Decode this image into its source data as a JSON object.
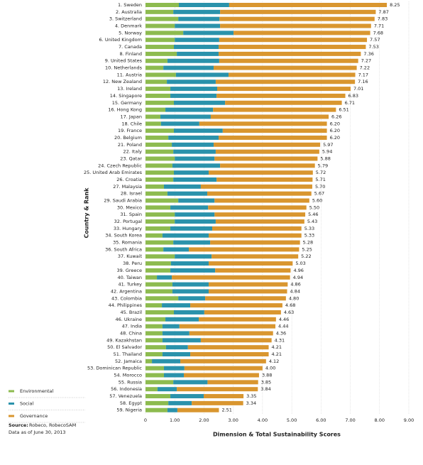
{
  "chart_data": {
    "type": "stacked-bar-horizontal",
    "x_label": "Dimension & Total Sustainability Scores",
    "y_label": "Country & Rank",
    "categories": [
      "1. Sweden",
      "2. Australia",
      "3. Switzerland",
      "4. Denmark",
      "5. Norway",
      "6. United Kingdom",
      "7. Canada",
      "8. Finland",
      "9. United States",
      "10. Netherlands",
      "11. Austria",
      "12. New Zealand",
      "13. Ireland",
      "14. Singapore",
      "15. Germany",
      "16. Hong Kong",
      "17. Japan",
      "18. Chile",
      "19. France",
      "20. Belgium",
      "21. Poland",
      "22. Italy",
      "23. Qatar",
      "24. Czech Republic",
      "25. United Arab Emirates",
      "26. Croatia",
      "27. Malaysia",
      "28. Israel",
      "29. Saudi Arabia",
      "30. Mexico",
      "31. Spain",
      "32. Portugal",
      "33. Hungary",
      "34. South Korea",
      "35. Romania",
      "36. South Africa",
      "37. Kuwait",
      "38. Peru",
      "39. Greece",
      "40. Taiwan",
      "41. Turkey",
      "42. Argentina",
      "43. Colombia",
      "44. Philippines",
      "45. Brazil",
      "46. Ukraine",
      "47. India",
      "48. China",
      "49. Kazakhstan",
      "50. El Salvador",
      "51. Thailand",
      "52. Jamaica",
      "53. Dominican Republic",
      "54. Morocco",
      "55. Russia",
      "56. Indonesia",
      "57. Venezuela",
      "58. Egypt",
      "59. Nigeria"
    ],
    "series": [
      {
        "name": "Environmental",
        "color": "#8dbb4f",
        "values": [
          1.14,
          0.95,
          1.12,
          1.0,
          1.29,
          1.0,
          0.97,
          1.07,
          0.75,
          0.61,
          1.04,
          0.73,
          0.85,
          0.85,
          0.97,
          0.68,
          0.51,
          0.53,
          0.97,
          0.78,
          0.9,
          0.95,
          1.0,
          0.92,
          0.97,
          0.95,
          0.63,
          0.75,
          1.12,
          0.85,
          1.0,
          1.0,
          0.85,
          0.58,
          0.95,
          0.61,
          1.0,
          0.87,
          0.85,
          0.39,
          0.92,
          0.92,
          1.12,
          0.56,
          0.97,
          0.68,
          0.58,
          0.58,
          0.58,
          0.7,
          0.58,
          0.22,
          0.63,
          0.63,
          0.95,
          0.41,
          0.85,
          0.78,
          0.75
        ]
      },
      {
        "name": "Social",
        "color": "#2a92ab",
        "values": [
          1.72,
          1.6,
          1.41,
          1.55,
          1.72,
          1.52,
          1.53,
          1.43,
          1.77,
          1.72,
          1.8,
          1.67,
          1.6,
          1.58,
          1.75,
          1.63,
          1.72,
          1.31,
          1.67,
          1.72,
          1.43,
          1.45,
          1.36,
          1.63,
          1.19,
          1.48,
          1.26,
          1.36,
          1.24,
          1.29,
          1.36,
          1.4,
          1.43,
          1.58,
          1.26,
          0.87,
          1.26,
          1.29,
          1.53,
          0.51,
          1.24,
          1.24,
          0.92,
          0.97,
          1.04,
          1.14,
          0.58,
          0.92,
          1.31,
          0.75,
          0.95,
          0.97,
          0.7,
          0.68,
          1.17,
          0.66,
          1.14,
          0.8,
          0.34
        ]
      },
      {
        "name": "Governance",
        "color": "#d9962f",
        "values": [
          5.39,
          5.32,
          5.3,
          5.16,
          4.67,
          5.05,
          5.03,
          4.86,
          4.75,
          4.89,
          4.33,
          4.76,
          4.56,
          4.4,
          3.99,
          4.2,
          4.03,
          4.36,
          3.56,
          3.7,
          3.64,
          3.54,
          3.52,
          3.24,
          3.56,
          3.28,
          3.81,
          3.56,
          3.24,
          3.36,
          3.1,
          3.03,
          3.05,
          3.17,
          3.07,
          3.77,
          2.96,
          2.87,
          2.58,
          4.04,
          2.7,
          2.68,
          2.76,
          3.15,
          2.62,
          2.64,
          3.28,
          2.86,
          2.42,
          2.76,
          2.68,
          2.93,
          2.67,
          2.57,
          1.73,
          2.77,
          1.36,
          1.76,
          1.42
        ]
      }
    ],
    "totals": {
      "values": [
        8.25,
        7.87,
        7.83,
        7.71,
        7.68,
        7.57,
        7.53,
        7.36,
        7.27,
        7.22,
        7.17,
        7.16,
        7.01,
        6.83,
        6.71,
        6.51,
        6.26,
        6.2,
        6.2,
        6.2,
        5.97,
        5.94,
        5.88,
        5.79,
        5.72,
        5.71,
        5.7,
        5.67,
        5.6,
        5.5,
        5.46,
        5.43,
        5.33,
        5.33,
        5.28,
        5.25,
        5.22,
        5.03,
        4.96,
        4.94,
        4.86,
        4.84,
        4.8,
        4.68,
        4.63,
        4.46,
        4.44,
        4.36,
        4.31,
        4.21,
        4.21,
        4.12,
        4.0,
        3.88,
        3.85,
        3.84,
        3.35,
        3.34,
        2.51
      ],
      "value_labels": [
        "8.25",
        "7.87",
        "7.83",
        "7.71",
        "7.68",
        "7.57",
        "7.53",
        "7.36",
        "7.27",
        "7.22",
        "7.17",
        "7.16",
        "7.01",
        "6.83",
        "6.71",
        "6.51",
        "6.26",
        "6.20",
        "6.20",
        "6.20",
        "5.97",
        "5.94",
        "5.88",
        "5.79",
        "5.72",
        "5.71",
        "5.70",
        "5.67",
        "5.60",
        "5.50",
        "5.46",
        "5.43",
        "5.33",
        "5.33",
        "5.28",
        "5.25",
        "5.22",
        "5.03",
        "4.96",
        "4.94",
        "4.86",
        "4.84",
        "4.80",
        "4.68",
        "4.63",
        "4.46",
        "4.44",
        "4.36",
        "4.31",
        "4.21",
        "4.21",
        "4.12",
        "4.00",
        "3.88",
        "3.85",
        "3.84",
        "3.35",
        "3.34",
        "2.51"
      ]
    },
    "xlim": [
      0,
      9
    ],
    "xticks": [
      0,
      {
        "value": 1,
        "label": "1.00"
      },
      {
        "value": 2,
        "label": "2.00"
      },
      {
        "value": 3,
        "label": "3.00"
      },
      {
        "value": 4,
        "label": "4.00"
      },
      {
        "value": 5,
        "label": "5.00"
      },
      {
        "value": 6,
        "label": "6.00"
      },
      {
        "value": 7,
        "label": "7.00"
      },
      {
        "value": 8,
        "label": "8.00"
      },
      {
        "value": 9,
        "label": "9.00"
      }
    ],
    "grid": true,
    "source_label": "Source:",
    "source": "Robeco, RobecoSAM",
    "note": "Data as of June 30, 2013"
  }
}
